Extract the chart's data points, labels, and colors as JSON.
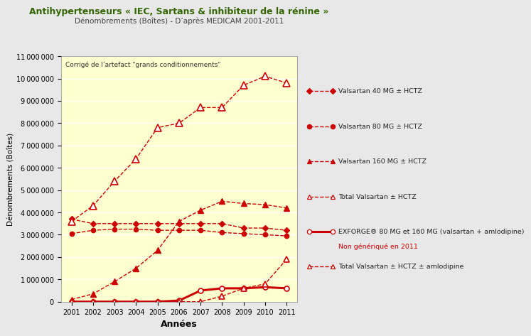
{
  "title_line1": "Antihypertenseurs « IEC, Sartans & inhibiteur de la rénine »",
  "title_line2": "Dénombrements (Boîtes) - D’après MEDICAM 2001-2011",
  "xlabel": "Années",
  "ylabel": "Dénombrements (Boîtes)",
  "annotation": "Corrigé de l’artefact \"grands conditionnements\"",
  "years": [
    2001,
    2002,
    2003,
    2004,
    2005,
    2006,
    2007,
    2008,
    2009,
    2010,
    2011
  ],
  "valsartan40": [
    3700000,
    3500000,
    3500000,
    3500000,
    3500000,
    3500000,
    3500000,
    3500000,
    3300000,
    3300000,
    3200000
  ],
  "valsartan80": [
    3050000,
    3200000,
    3250000,
    3250000,
    3200000,
    3200000,
    3200000,
    3100000,
    3050000,
    3000000,
    2950000
  ],
  "valsartan160": [
    100000,
    350000,
    900000,
    1500000,
    2300000,
    3600000,
    4100000,
    4500000,
    4400000,
    4350000,
    4200000
  ],
  "total_valsartan_hctz": [
    3600000,
    4300000,
    5400000,
    6400000,
    7800000,
    8000000,
    8700000,
    8700000,
    9700000,
    10100000,
    9800000
  ],
  "exforge": [
    0,
    0,
    0,
    0,
    0,
    50000,
    500000,
    600000,
    600000,
    650000,
    600000
  ],
  "total_amlodipine": [
    0,
    0,
    0,
    0,
    0,
    0,
    0,
    250000,
    600000,
    800000,
    1900000
  ],
  "ylim": [
    0,
    11000000
  ],
  "yticks": [
    0,
    1000000,
    2000000,
    3000000,
    4000000,
    5000000,
    6000000,
    7000000,
    8000000,
    9000000,
    10000000,
    11000000
  ],
  "color": "#cc0000",
  "bg_color": "#ffffd0",
  "outer_bg": "#e8e8e8",
  "title_color": "#336600",
  "subtitle_color": "#444444",
  "legend_labels": [
    "Valsartan 40 MG ± HCTZ",
    "Valsartan 80 MG ± HCTZ",
    "Valsartan 160 MG ± HCTZ",
    "Total Valsartan ± HCTZ",
    "EXFORGE® 80 MG et 160 MG (valsartan + amlodipine)",
    "Non génériqué en 2011",
    "Total Valsartan ± HCTZ ± amlodipine"
  ]
}
